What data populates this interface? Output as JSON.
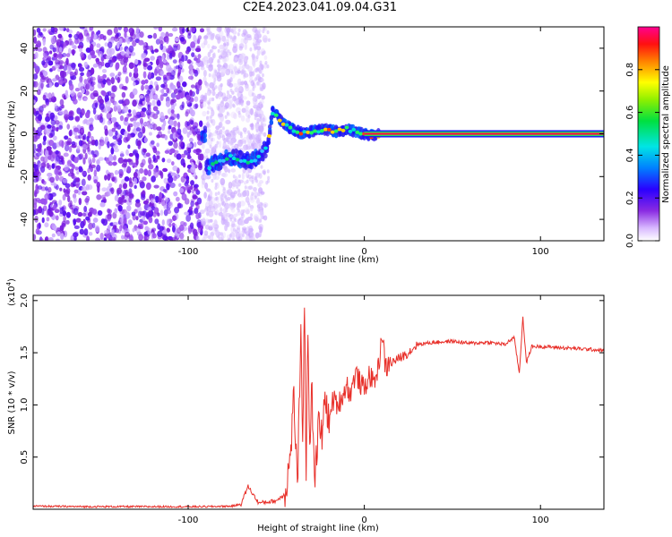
{
  "title": "C2E4.2023.041.09.04.G31",
  "chart_data": [
    {
      "type": "heatmap",
      "xlabel": "Height of straight line (km)",
      "ylabel": "Frequency (Hz)",
      "xlim": [
        -188,
        136
      ],
      "ylim": [
        -50,
        50
      ],
      "x_ticks": [
        -100,
        0,
        100
      ],
      "y_ticks": [
        -40,
        -20,
        0,
        20,
        40
      ],
      "colorbar": {
        "label": "Normalized spectral amplitude",
        "range": [
          0,
          1
        ],
        "ticks": [
          0.0,
          0.2,
          0.4,
          0.6,
          0.8
        ]
      },
      "ridge": {
        "x": [
          -90,
          -85,
          -80,
          -75,
          -70,
          -65,
          -60,
          -55,
          -52,
          -50,
          -48,
          -45,
          -40,
          -35,
          -30,
          -25,
          -20,
          -15,
          -10,
          -5,
          0,
          5,
          10,
          20,
          40,
          60,
          80,
          100,
          120,
          136
        ],
        "y": [
          -16,
          -14,
          -12,
          -11,
          -12,
          -13,
          -11,
          -6,
          10,
          9,
          7,
          4,
          2,
          0,
          1,
          2,
          2,
          1,
          2,
          1,
          0,
          -1,
          0,
          0,
          0,
          0,
          0,
          0,
          0,
          0
        ]
      }
    },
    {
      "type": "line",
      "xlabel": "Height of straight line (km)",
      "ylabel": "SNR (10 * v/v)",
      "multiplier": "(x10^4)",
      "multiplier_base": "(x10",
      "multiplier_exp": "4",
      "multiplier_close": ")",
      "xlim": [
        -188,
        136
      ],
      "ylim": [
        0,
        20500
      ],
      "x_ticks": [
        -100,
        0,
        100
      ],
      "y_ticks": [
        5000,
        10000,
        15000,
        20000
      ],
      "y_tick_labels": [
        "0.5",
        "1.0",
        "1.5",
        "2.0"
      ],
      "series": [
        {
          "color": "#e8302a",
          "x": [
            -188,
            -160,
            -120,
            -90,
            -75,
            -70,
            -66,
            -60,
            -50,
            -45,
            -42,
            -40,
            -38,
            -36,
            -35,
            -34,
            -33,
            -32,
            -31,
            -30,
            -28,
            -26,
            -24,
            -22,
            -20,
            -18,
            -15,
            -12,
            -10,
            -8,
            -5,
            -2,
            0,
            3,
            5,
            8,
            10,
            12,
            15,
            20,
            25,
            30,
            40,
            50,
            60,
            70,
            80,
            85,
            88,
            90,
            92,
            95,
            100,
            110,
            120,
            130,
            136
          ],
          "y": [
            300,
            250,
            250,
            250,
            300,
            500,
            2200,
            600,
            800,
            1500,
            5000,
            11000,
            2000,
            16000,
            7000,
            20500,
            3000,
            17500,
            6000,
            12000,
            3000,
            8000,
            7000,
            11000,
            8000,
            10500,
            10000,
            11000,
            12000,
            11000,
            13000,
            12000,
            11500,
            13000,
            12000,
            13500,
            17000,
            13500,
            14000,
            14500,
            15000,
            15800,
            16000,
            16100,
            15900,
            16000,
            15800,
            16500,
            13000,
            18500,
            14000,
            15600,
            15600,
            15500,
            15400,
            15300,
            15200
          ]
        }
      ]
    }
  ]
}
